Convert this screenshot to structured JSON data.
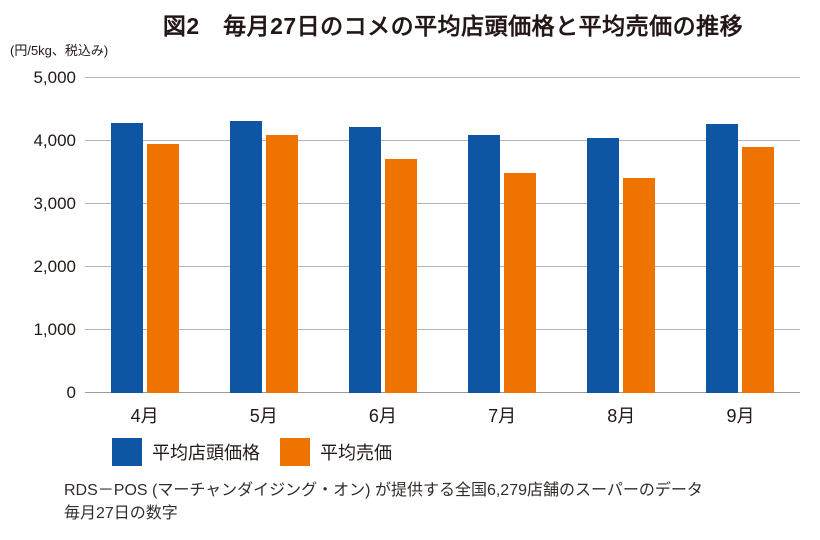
{
  "title": "図2　毎月27日のコメの平均店頭価格と平均売価の推移",
  "unit_label": "(円/5kg、税込み)",
  "footer": {
    "line1": "RDS－POS (マーチャンダイジング・オン) が提供する全国6,279店舗のスーパーのデータ",
    "line2": "毎月27日の数字"
  },
  "colors": {
    "store_price_blue": "#0e56a4",
    "selling_price_orange": "#ee7300",
    "gridline_gray": "#b4b4b4",
    "text_dark": "#231815"
  },
  "chart_data": {
    "type": "bar",
    "title": "図2　毎月27日のコメの平均店頭価格と平均売価の推移",
    "unit_label": "(円/5kg、税込み)",
    "categories": [
      "4月",
      "5月",
      "6月",
      "7月",
      "8月",
      "9月"
    ],
    "series": [
      {
        "name": "平均店頭価格",
        "color": "#0e56a4",
        "values": [
          4280,
          4320,
          4230,
          4100,
          4040,
          4270
        ]
      },
      {
        "name": "平均売価",
        "color": "#ee7300",
        "values": [
          3960,
          4090,
          3720,
          3500,
          3420,
          3900
        ]
      }
    ],
    "ylim": [
      0,
      5000
    ],
    "yticks": [
      0,
      1000,
      2000,
      3000,
      4000,
      5000
    ],
    "ytick_labels": [
      "0",
      "1,000",
      "2,000",
      "3,000",
      "4,000",
      "5,000"
    ],
    "xlabel": "",
    "ylabel": "",
    "grid": true,
    "legend_position": "bottom",
    "source_note": "RDS－POS (マーチャンダイジング・オン) が提供する全国6,279店舗のスーパーのデータ 毎月27日の数字"
  }
}
